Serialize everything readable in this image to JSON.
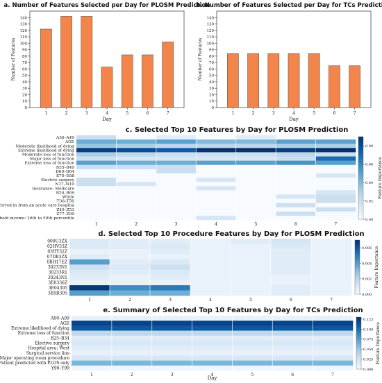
{
  "chart_data": [
    {
      "type": "bar",
      "title": "a. Number of Features Selected per Day for PLOSM Prediction",
      "xlabel": "Day",
      "ylabel": "Number of Features",
      "categories": [
        "1",
        "2",
        "3",
        "4",
        "5",
        "6",
        "7"
      ],
      "values": [
        122,
        142,
        142,
        63,
        82,
        82,
        102
      ],
      "ylim": [
        0,
        150
      ],
      "yticks": [
        "0",
        "10",
        "20",
        "30",
        "40",
        "50",
        "60",
        "70",
        "80",
        "90",
        "100",
        "110",
        "120",
        "130",
        "140"
      ],
      "bar_color": "#f4854a"
    },
    {
      "type": "bar",
      "title": "b. Number of Features Selected per Day for TCs Prediction",
      "xlabel": "Day",
      "ylabel": "Number of Features",
      "categories": [
        "1",
        "2",
        "3",
        "4",
        "5",
        "6",
        "7"
      ],
      "values": [
        84,
        84,
        84,
        84,
        84,
        65,
        65
      ],
      "ylim": [
        0,
        150
      ],
      "yticks": [
        "0",
        "10",
        "20",
        "30",
        "40",
        "50",
        "60",
        "70",
        "80",
        "90",
        "100",
        "110",
        "120",
        "130",
        "140"
      ],
      "bar_color": "#f4854a"
    },
    {
      "type": "heatmap",
      "title": "c. Selected Top 10 Features by Day for PLOSM Prediction",
      "columns": [
        "1",
        "2",
        "3",
        "4",
        "5",
        "6",
        "7"
      ],
      "rows": [
        "A30–A49",
        "AGE",
        "Moderate likelihood of dying",
        "Extreme likelihood of dying",
        "Moderate loss of function",
        "Major loss of function",
        "Extreme loss of function",
        "B35–B49",
        "D60–D64",
        "E70–E88",
        "Elective surgery",
        "N17–N19",
        "Insurance: Medicare",
        "R50–R69",
        "White",
        "T36–T50",
        "Transferred in from an acute care hospital",
        "Z40–Z53",
        "Z77–Z99",
        "Median household income: 26th to 50th percentile"
      ],
      "values": [
        [
          0.02,
          0.0,
          0.01,
          0.0,
          0.01,
          0.0,
          0.0
        ],
        [
          0.045,
          0.045,
          0.05,
          0.04,
          0.04,
          0.05,
          0.05
        ],
        [
          0.035,
          0.03,
          0.025,
          0.025,
          0.025,
          0.03,
          0.03
        ],
        [
          0.085,
          0.08,
          0.075,
          0.09,
          0.09,
          0.085,
          0.095
        ],
        [
          0.03,
          0.025,
          0.02,
          0.02,
          0.02,
          0.025,
          0.02
        ],
        [
          0.02,
          0.015,
          0.015,
          0.015,
          0.015,
          0.02,
          0.07
        ],
        [
          0.05,
          0.045,
          0.045,
          0.05,
          0.05,
          0.055,
          0.05
        ],
        [
          0.02,
          0.02,
          0.02,
          0.0,
          0.0,
          0.0,
          0.0
        ],
        [
          0.0,
          0.0,
          0.02,
          0.0,
          0.0,
          0.0,
          0.0
        ],
        [
          0.0,
          0.0,
          0.0,
          0.0,
          0.0,
          0.0,
          0.015
        ],
        [
          0.02,
          0.0,
          0.0,
          0.015,
          0.0,
          0.0,
          0.0
        ],
        [
          0.02,
          0.015,
          0.0,
          0.0,
          0.0,
          0.0,
          0.0
        ],
        [
          0.0,
          0.0,
          0.0,
          0.015,
          0.0,
          0.0,
          0.0
        ],
        [
          0.0,
          0.0,
          0.0,
          0.0,
          0.0,
          0.0,
          0.015
        ],
        [
          0.0,
          0.0,
          0.0,
          0.0,
          0.0,
          0.015,
          0.02
        ],
        [
          0.0,
          0.0,
          0.0,
          0.0,
          0.0,
          0.0,
          0.02
        ],
        [
          0.0,
          0.0,
          0.0,
          0.0,
          0.0,
          0.02,
          0.0
        ],
        [
          0.0,
          0.0,
          0.0,
          0.0,
          0.0,
          0.0,
          0.02
        ],
        [
          0.0,
          0.0,
          0.0,
          0.0,
          0.0,
          0.02,
          0.0
        ],
        [
          0.0,
          0.0,
          0.0,
          0.015,
          0.0,
          0.0,
          0.0
        ]
      ],
      "colorbar_label": "Feature Importance",
      "colorbar_ticks": [
        "0.00",
        "0.02",
        "0.04",
        "0.06",
        "0.08"
      ],
      "vmin": 0.0,
      "vmax": 0.09
    },
    {
      "type": "heatmap",
      "title": "d. Selected Top 10 Procedure Features by Day for PLOSM Prediction",
      "columns": [
        "1",
        "2",
        "3",
        "4",
        "5",
        "6",
        "7"
      ],
      "rows": [
        "009U3ZX",
        "02HV33Z",
        "03HY32Z",
        "07DR3ZX",
        "0BH17EZ",
        "30233N1",
        "30233R1",
        "30243N1",
        "3E0336Z",
        "3E04305",
        "3E0R305"
      ],
      "values": [
        [
          0.001,
          0.0008,
          0.0008,
          0.0005,
          0.0008,
          0.0012,
          0.0005
        ],
        [
          0.001,
          0.0008,
          0.001,
          0.0005,
          0.0005,
          0.001,
          0.0005
        ],
        [
          0.0005,
          0.0005,
          0.0008,
          0.0005,
          0.0005,
          0.0008,
          0.0005
        ],
        [
          0.0008,
          0.0005,
          0.0005,
          0.0005,
          0.0005,
          0.0008,
          0.0005
        ],
        [
          0.004,
          0.0008,
          0.001,
          0.0005,
          0.0005,
          0.0008,
          0.0005
        ],
        [
          0.0015,
          0.001,
          0.0015,
          0.0005,
          0.0005,
          0.0008,
          0.0005
        ],
        [
          0.001,
          0.0008,
          0.001,
          0.0005,
          0.0005,
          0.0008,
          0.0005
        ],
        [
          0.0008,
          0.0005,
          0.0008,
          0.0005,
          0.0005,
          0.0005,
          0.0005
        ],
        [
          0.0005,
          0.0005,
          0.0005,
          0.0005,
          0.0005,
          0.0005,
          0.0005
        ],
        [
          0.0068,
          0.0045,
          0.005,
          0.0005,
          0.0005,
          0.0008,
          0.0005
        ],
        [
          0.004,
          0.0035,
          0.0035,
          0.0005,
          0.0005,
          0.0008,
          0.0005
        ]
      ],
      "colorbar_label": "Feature Importance",
      "colorbar_ticks": [
        "0.000",
        "0.002",
        "0.004",
        "0.006"
      ],
      "vmin": 0.0,
      "vmax": 0.007
    },
    {
      "type": "heatmap",
      "title": "e. Summary of Selected Top 10 Features by Day for TCs Prediction",
      "xlabel": "Day",
      "columns": [
        "1",
        "2",
        "3",
        "4",
        "5",
        "6",
        "7"
      ],
      "rows": [
        "A00–A09",
        "AGE",
        "Extreme likelihood of dying",
        "Extreme loss of function",
        "B25–B34",
        "Elective surgery",
        "Hospital area: West",
        "Surgical service line",
        "Major operating room procedure",
        "Patient predicted with PLOS only",
        "Y90–Y99"
      ],
      "values": [
        [
          0.01,
          0.01,
          0.01,
          0.01,
          0.01,
          0.01,
          0.01
        ],
        [
          0.12,
          0.12,
          0.12,
          0.12,
          0.12,
          0.12,
          0.12
        ],
        [
          0.11,
          0.11,
          0.11,
          0.11,
          0.11,
          0.11,
          0.11
        ],
        [
          0.035,
          0.035,
          0.035,
          0.035,
          0.035,
          0.035,
          0.035
        ],
        [
          0.015,
          0.015,
          0.015,
          0.015,
          0.015,
          0.015,
          0.015
        ],
        [
          0.02,
          0.02,
          0.02,
          0.02,
          0.02,
          0.02,
          0.02
        ],
        [
          0.015,
          0.015,
          0.015,
          0.015,
          0.015,
          0.015,
          0.015
        ],
        [
          0.01,
          0.01,
          0.01,
          0.01,
          0.01,
          0.01,
          0.01
        ],
        [
          0.02,
          0.02,
          0.02,
          0.02,
          0.02,
          0.02,
          0.02
        ],
        [
          0.06,
          0.06,
          0.06,
          0.06,
          0.06,
          0.06,
          0.06
        ],
        [
          0.005,
          0.005,
          0.005,
          0.005,
          0.005,
          0.005,
          0.005
        ]
      ],
      "colorbar_label": "Feature Importance",
      "colorbar_ticks": [
        "0.000",
        "0.025",
        "0.050",
        "0.075",
        "0.100",
        "0.125"
      ],
      "vmin": 0.0,
      "vmax": 0.13
    }
  ]
}
